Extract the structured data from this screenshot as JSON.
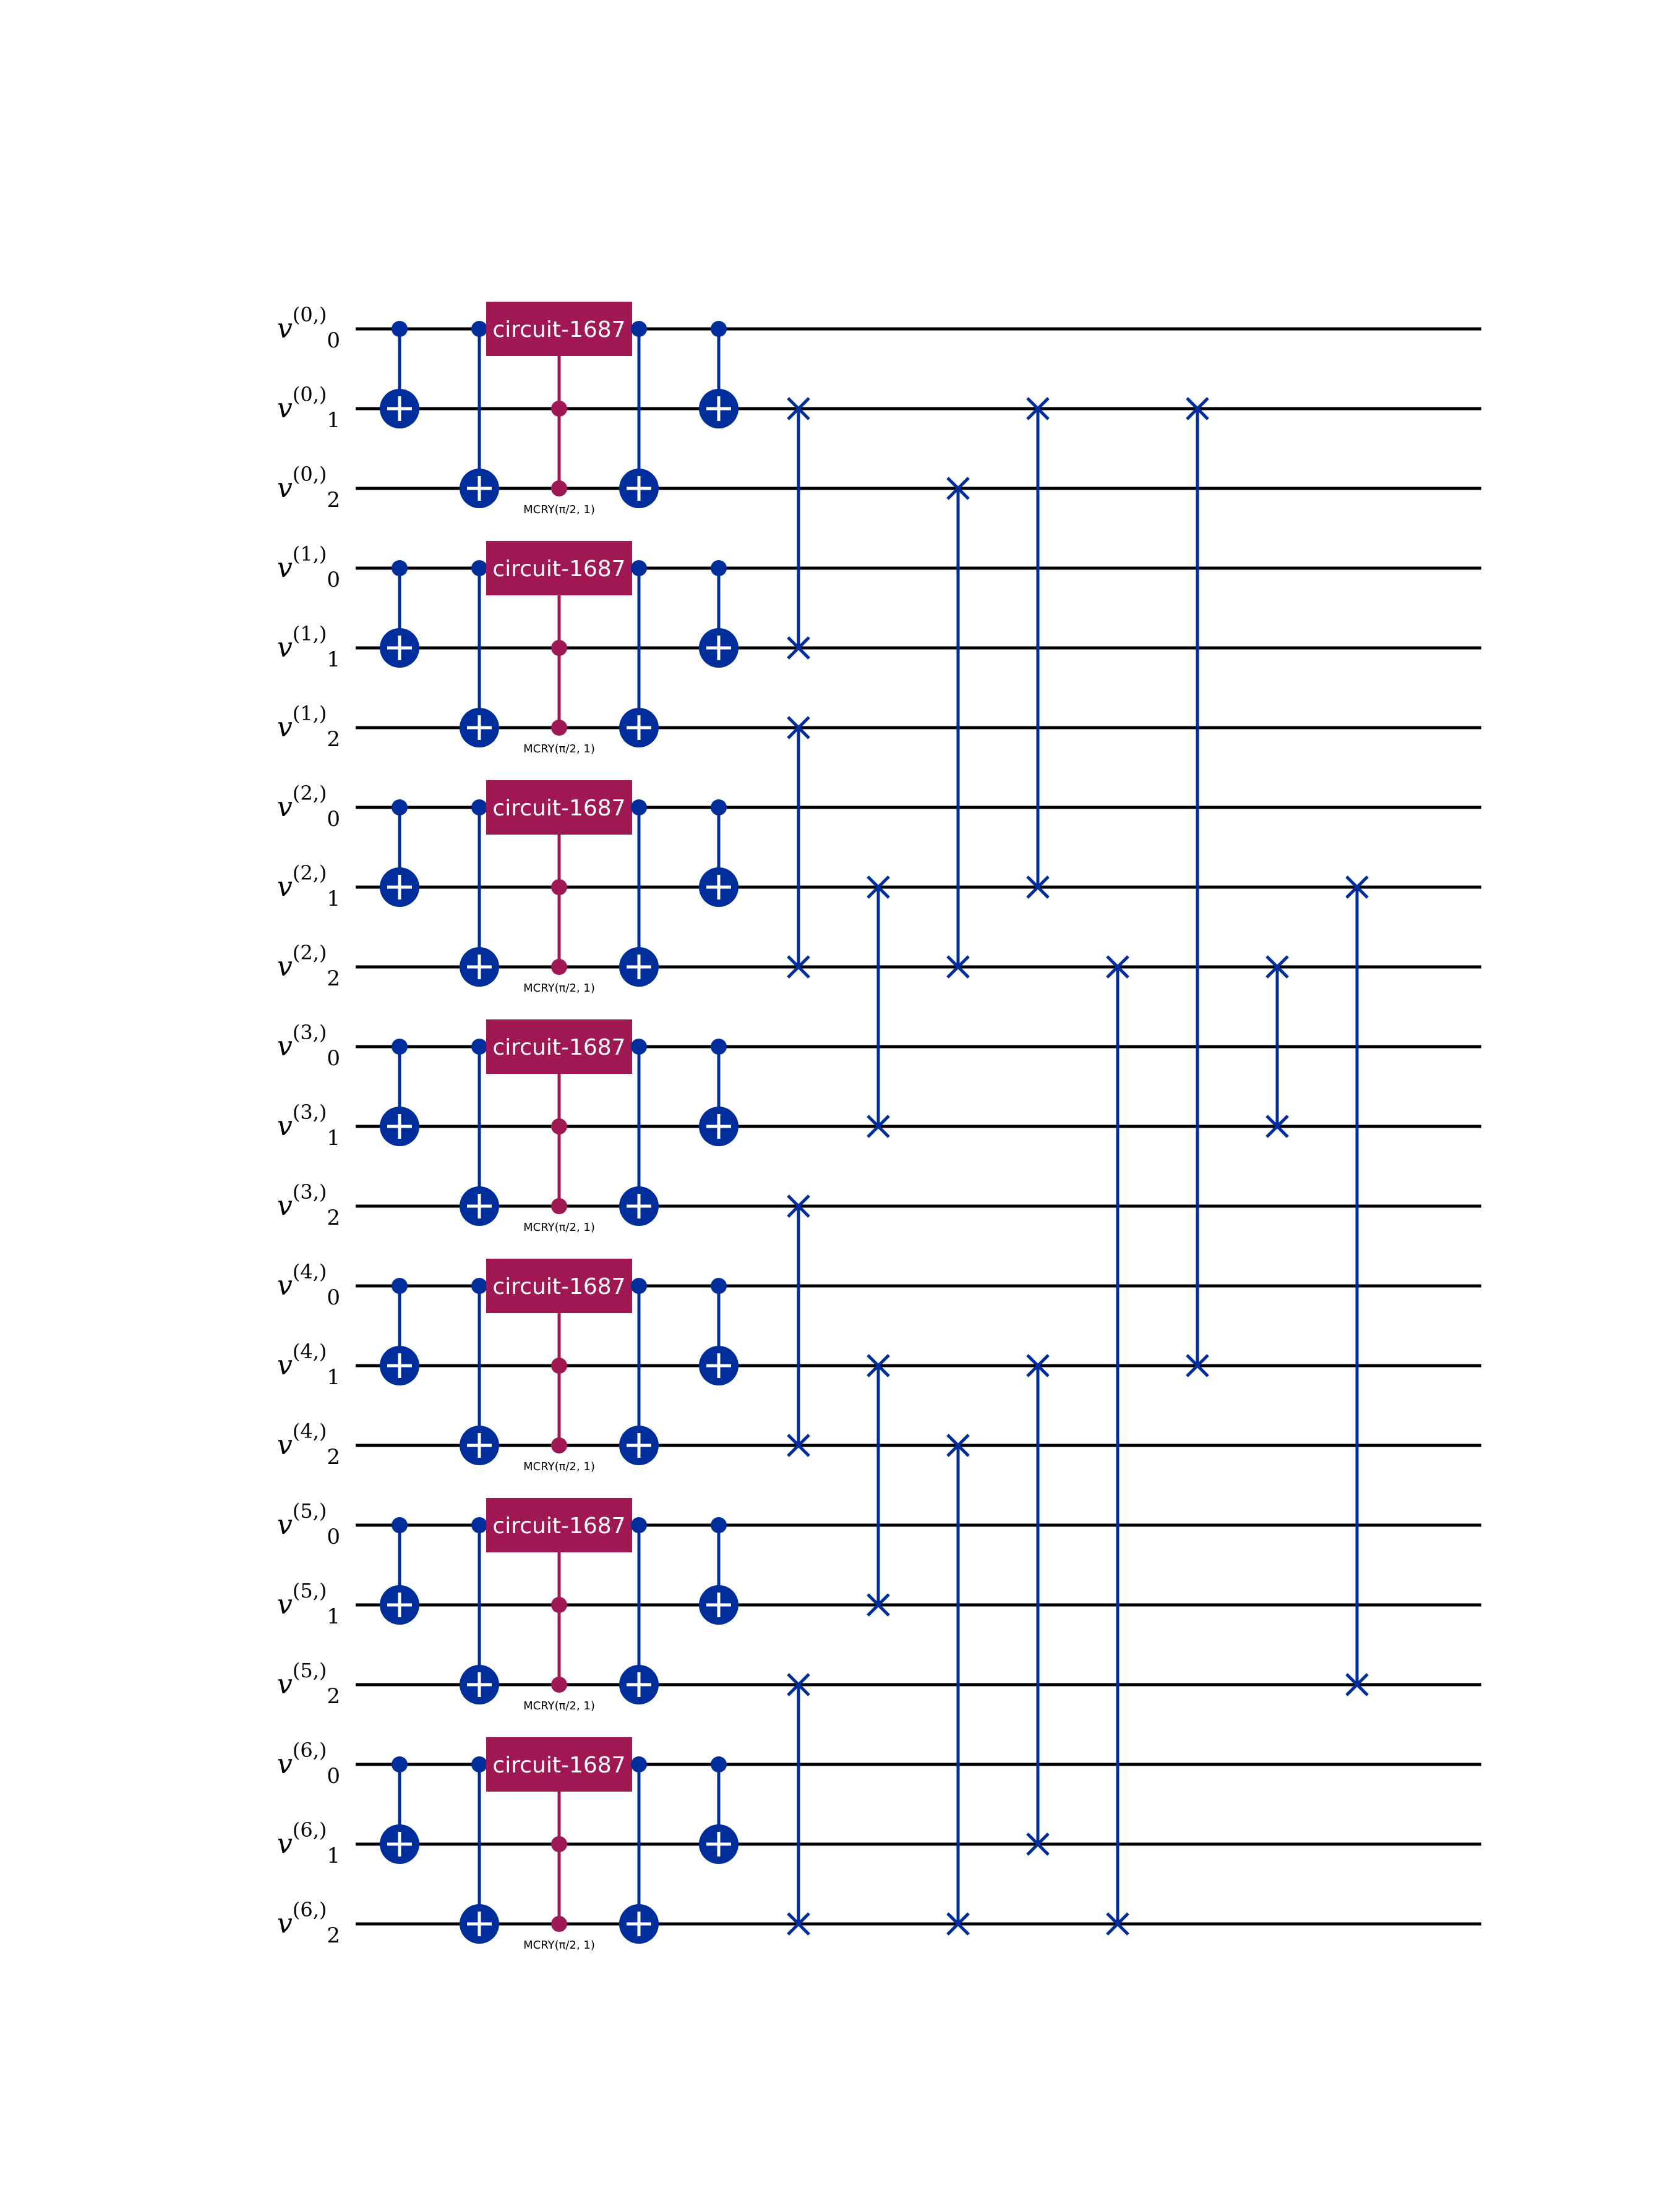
{
  "colors": {
    "cx": "#002D9C",
    "swap": "#002D9C",
    "custom": "#9F1853",
    "wire": "#000000",
    "background": "#FFFFFF"
  },
  "registers": [
    {
      "index": "0",
      "label": "v",
      "qubits": [
        "0",
        "1",
        "2"
      ]
    },
    {
      "index": "1",
      "label": "v",
      "qubits": [
        "0",
        "1",
        "2"
      ]
    },
    {
      "index": "2",
      "label": "v",
      "qubits": [
        "0",
        "1",
        "2"
      ]
    },
    {
      "index": "3",
      "label": "v",
      "qubits": [
        "0",
        "1",
        "2"
      ]
    },
    {
      "index": "4",
      "label": "v",
      "qubits": [
        "0",
        "1",
        "2"
      ]
    },
    {
      "index": "5",
      "label": "v",
      "qubits": [
        "0",
        "1",
        "2"
      ]
    },
    {
      "index": "6",
      "label": "v",
      "qubits": [
        "0",
        "1",
        "2"
      ]
    }
  ],
  "gates": [
    {
      "type": "cx",
      "column": 0,
      "control": 0,
      "target": 1
    },
    {
      "type": "cx",
      "column": 1,
      "control": 0,
      "target": 2
    },
    {
      "type": "custom",
      "column": 2,
      "target": 0,
      "controls": [
        1,
        2
      ],
      "label": "circuit-1687",
      "sublabel": "MCRY(π/2, 1)"
    },
    {
      "type": "cx",
      "column": 3,
      "control": 0,
      "target": 2
    },
    {
      "type": "cx",
      "column": 4,
      "control": 0,
      "target": 1
    }
  ],
  "swaps": [
    {
      "column": 5,
      "q1": 1,
      "q2": 4
    },
    {
      "column": 5,
      "q1": 5,
      "q2": 8
    },
    {
      "column": 5,
      "q1": 11,
      "q2": 14
    },
    {
      "column": 5,
      "q1": 17,
      "q2": 20
    },
    {
      "column": 6,
      "q1": 7,
      "q2": 10
    },
    {
      "column": 6,
      "q1": 13,
      "q2": 16
    },
    {
      "column": 7,
      "q1": 2,
      "q2": 8
    },
    {
      "column": 7,
      "q1": 14,
      "q2": 20
    },
    {
      "column": 8,
      "q1": 1,
      "q2": 7
    },
    {
      "column": 8,
      "q1": 13,
      "q2": 19
    },
    {
      "column": 9,
      "q1": 8,
      "q2": 20
    },
    {
      "column": 10,
      "q1": 1,
      "q2": 13
    },
    {
      "column": 11,
      "q1": 8,
      "q2": 10
    },
    {
      "column": 12,
      "q1": 7,
      "q2": 17
    }
  ]
}
